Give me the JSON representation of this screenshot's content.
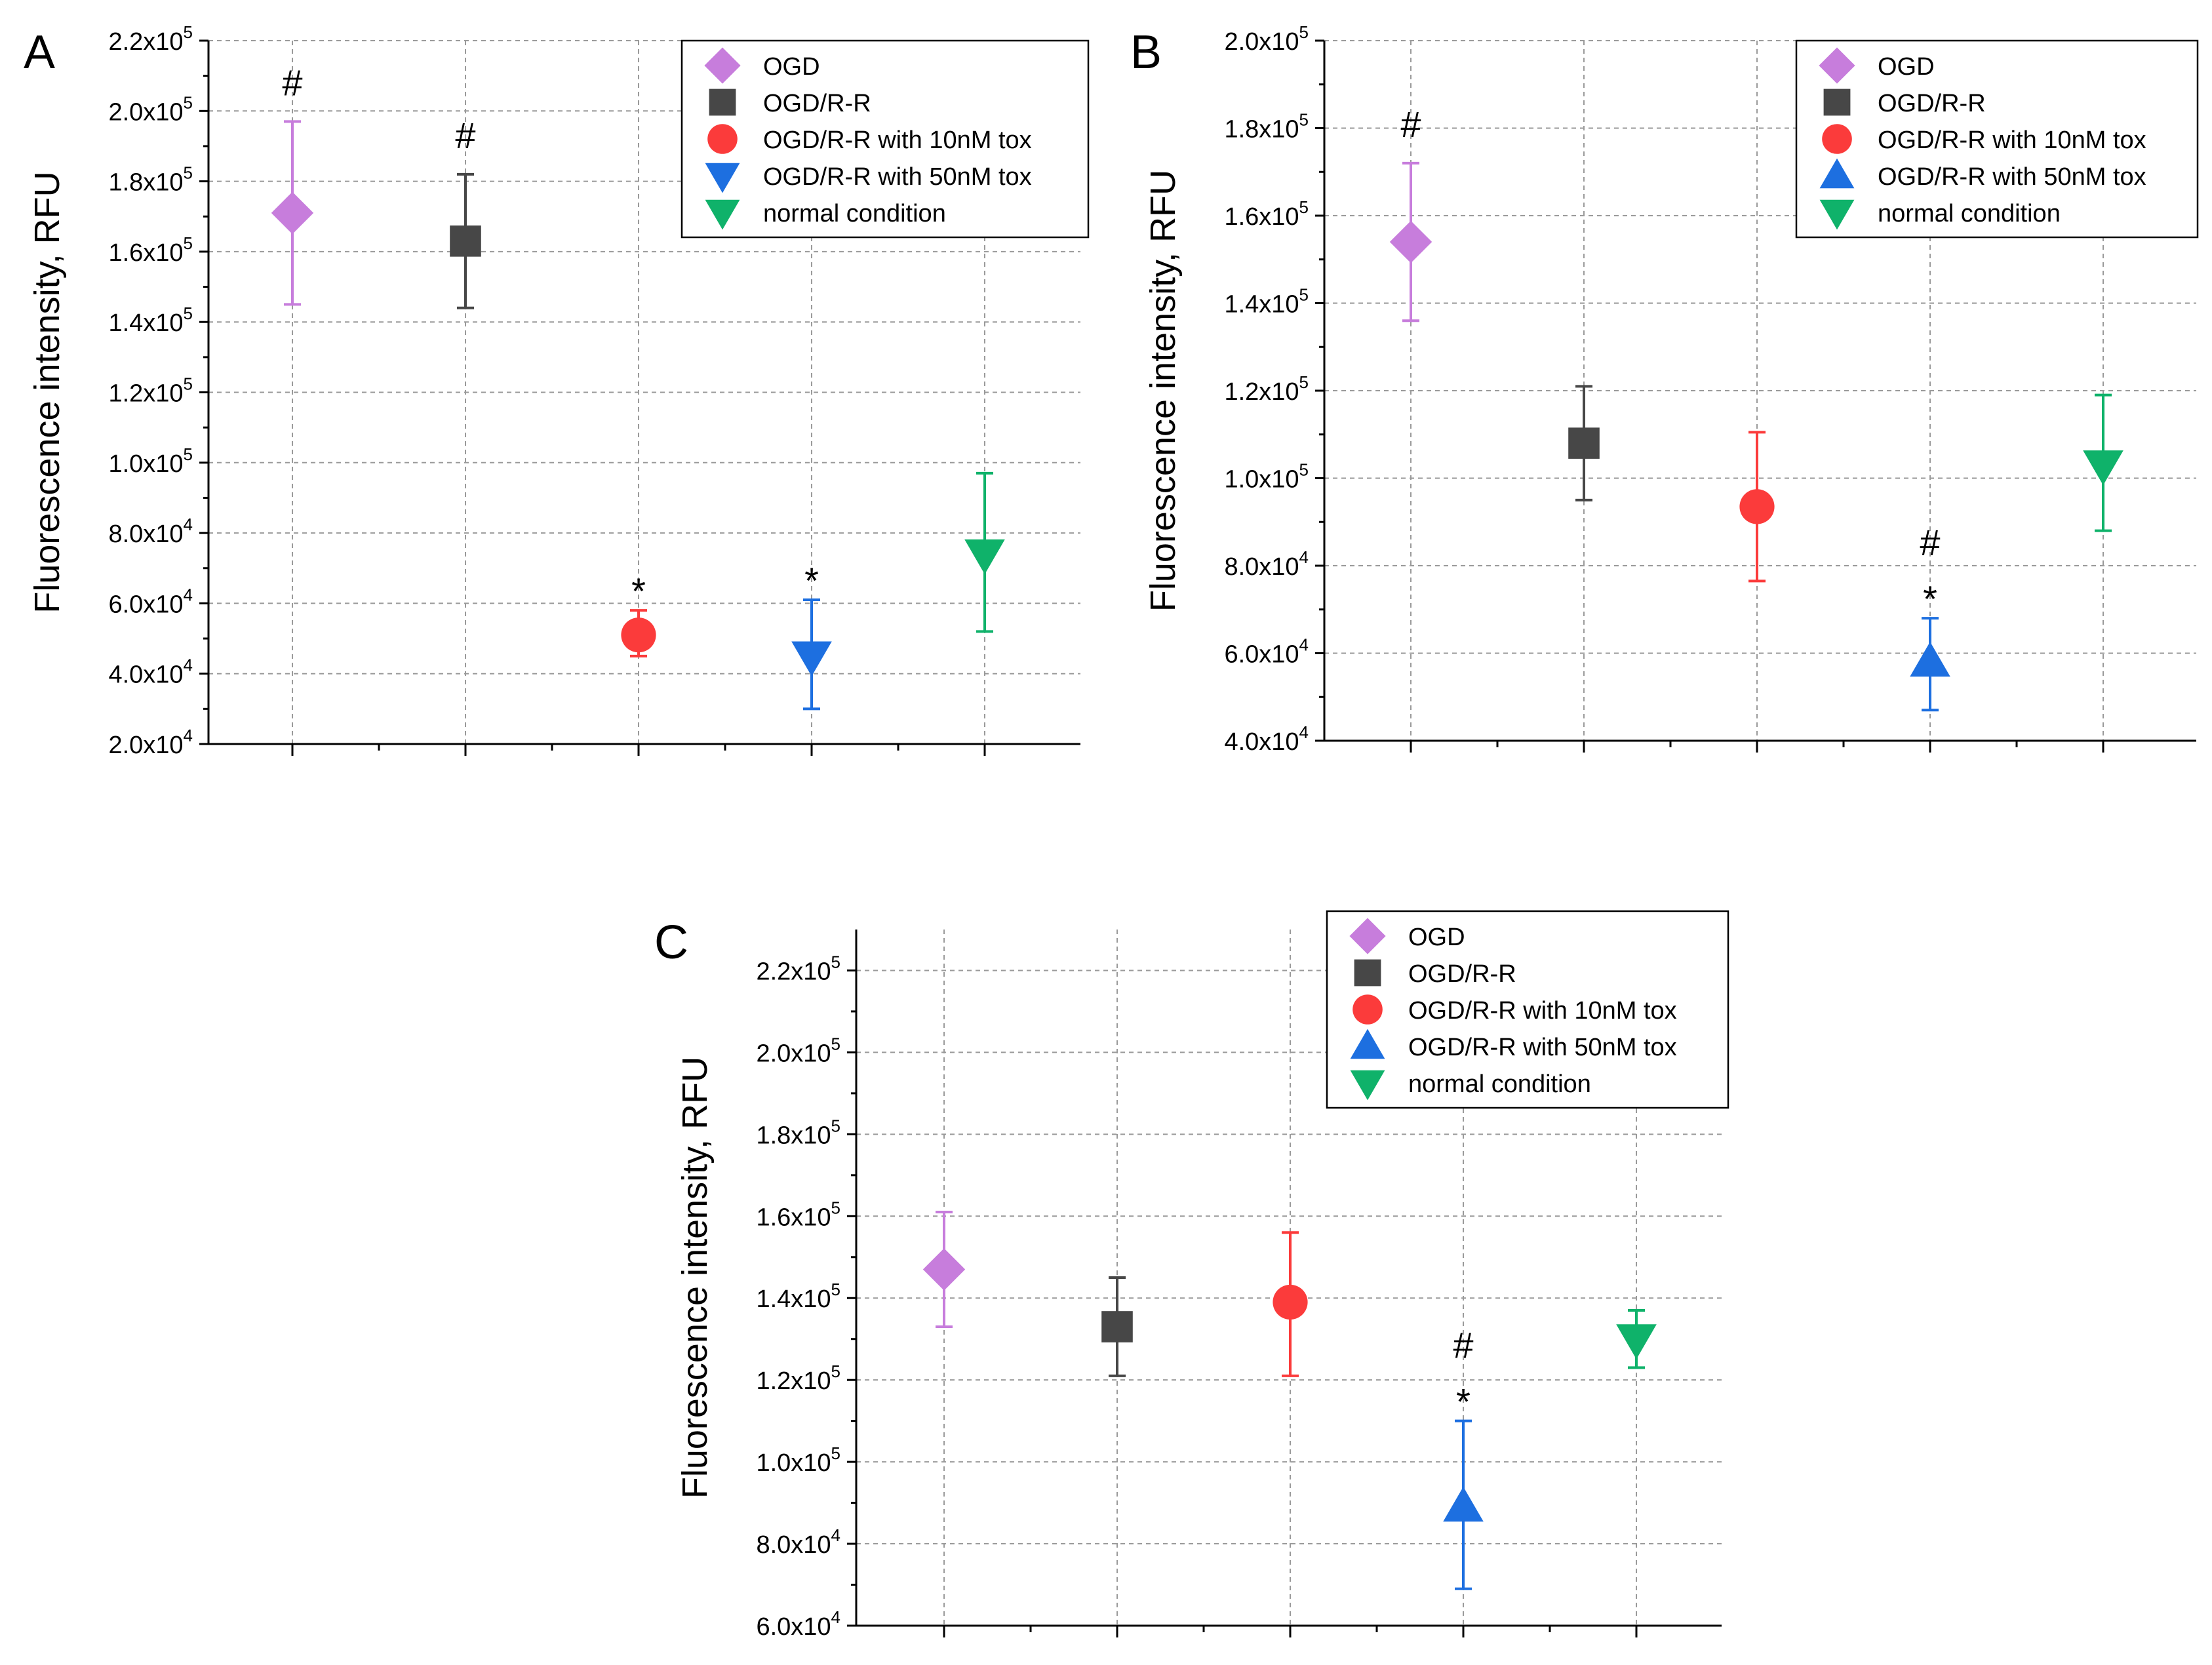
{
  "chart_data": [
    {
      "panel": "A",
      "type": "scatter",
      "ylabel": "Fluorescence intensity, RFU",
      "ylim": [
        20000,
        220000
      ],
      "yticks": [
        20000,
        40000,
        60000,
        80000,
        100000,
        120000,
        140000,
        160000,
        180000,
        200000,
        220000
      ],
      "ytick_labels": [
        [
          "2.0x10",
          "4"
        ],
        [
          "4.0x10",
          "4"
        ],
        [
          "6.0x10",
          "4"
        ],
        [
          "8.0x10",
          "4"
        ],
        [
          "1.0x10",
          "5"
        ],
        [
          "1.2x10",
          "5"
        ],
        [
          "1.4x10",
          "5"
        ],
        [
          "1.6x10",
          "5"
        ],
        [
          "1.8x10",
          "5"
        ],
        [
          "2.0x10",
          "5"
        ],
        [
          "2.2x10",
          "5"
        ]
      ],
      "grid": true,
      "legend_position": "top-right",
      "series": [
        {
          "name": "OGD",
          "marker": "diamond",
          "color": "#c77ddc",
          "value": 171000,
          "err_low": 145000,
          "err_high": 197000,
          "annotations": [
            "#"
          ]
        },
        {
          "name": "OGD/R-R",
          "marker": "square",
          "color": "#474747",
          "value": 163000,
          "err_low": 144000,
          "err_high": 182000,
          "annotations": [
            "#"
          ]
        },
        {
          "name": "OGD/R-R with 10nM tox",
          "marker": "circle",
          "color": "#fb3b3b",
          "value": 51000,
          "err_low": 45000,
          "err_high": 58000,
          "annotations": [
            "*"
          ]
        },
        {
          "name": "OGD/R-R with 50nM tox",
          "marker": "triangle-down",
          "color": "#1d6fe0",
          "value": 45000,
          "err_low": 30000,
          "err_high": 61000,
          "annotations": [
            "*"
          ]
        },
        {
          "name": "normal condition",
          "marker": "triangle-down",
          "color": "#0fb26a",
          "value": 74000,
          "err_low": 52000,
          "err_high": 97000,
          "annotations": []
        }
      ]
    },
    {
      "panel": "B",
      "type": "scatter",
      "ylabel": "Fluorescence intensity, RFU",
      "ylim": [
        40000,
        200000
      ],
      "yticks": [
        40000,
        60000,
        80000,
        100000,
        120000,
        140000,
        160000,
        180000,
        200000
      ],
      "ytick_labels": [
        [
          "4.0x10",
          "4"
        ],
        [
          "6.0x10",
          "4"
        ],
        [
          "8.0x10",
          "4"
        ],
        [
          "1.0x10",
          "5"
        ],
        [
          "1.2x10",
          "5"
        ],
        [
          "1.4x10",
          "5"
        ],
        [
          "1.6x10",
          "5"
        ],
        [
          "1.8x10",
          "5"
        ],
        [
          "2.0x10",
          "5"
        ]
      ],
      "grid": true,
      "legend_position": "top-right",
      "series": [
        {
          "name": "OGD",
          "marker": "diamond",
          "color": "#c77ddc",
          "value": 154000,
          "err_low": 136000,
          "err_high": 172000,
          "annotations": [
            "#"
          ]
        },
        {
          "name": "OGD/R-R",
          "marker": "square",
          "color": "#474747",
          "value": 108000,
          "err_low": 95000,
          "err_high": 121000,
          "annotations": []
        },
        {
          "name": "OGD/R-R with 10nM tox",
          "marker": "circle",
          "color": "#fb3b3b",
          "value": 93500,
          "err_low": 76500,
          "err_high": 110500,
          "annotations": []
        },
        {
          "name": "OGD/R-R with 50nM tox",
          "marker": "triangle-up",
          "color": "#1d6fe0",
          "value": 58000,
          "err_low": 47000,
          "err_high": 68000,
          "annotations": [
            "#",
            "*"
          ]
        },
        {
          "name": "normal condition",
          "marker": "triangle-down",
          "color": "#0fb26a",
          "value": 103000,
          "err_low": 88000,
          "err_high": 119000,
          "annotations": []
        }
      ]
    },
    {
      "panel": "C",
      "type": "scatter",
      "ylabel": "Fluorescence intensity, RFU",
      "ylim": [
        60000,
        230000
      ],
      "yticks": [
        60000,
        80000,
        100000,
        120000,
        140000,
        160000,
        180000,
        200000,
        220000
      ],
      "ytick_labels": [
        [
          "6.0x10",
          "4"
        ],
        [
          "8.0x10",
          "4"
        ],
        [
          "1.0x10",
          "5"
        ],
        [
          "1.2x10",
          "5"
        ],
        [
          "1.4x10",
          "5"
        ],
        [
          "1.6x10",
          "5"
        ],
        [
          "1.8x10",
          "5"
        ],
        [
          "2.0x10",
          "5"
        ],
        [
          "2.2x10",
          "5"
        ]
      ],
      "grid": true,
      "legend_position": "top-right",
      "series": [
        {
          "name": "OGD",
          "marker": "diamond",
          "color": "#c77ddc",
          "value": 147000,
          "err_low": 133000,
          "err_high": 161000,
          "annotations": []
        },
        {
          "name": "OGD/R-R",
          "marker": "square",
          "color": "#474747",
          "value": 133000,
          "err_low": 121000,
          "err_high": 145000,
          "annotations": []
        },
        {
          "name": "OGD/R-R with 10nM tox",
          "marker": "circle",
          "color": "#fb3b3b",
          "value": 139000,
          "err_low": 121000,
          "err_high": 156000,
          "annotations": []
        },
        {
          "name": "OGD/R-R with 50nM tox",
          "marker": "triangle-up",
          "color": "#1d6fe0",
          "value": 89000,
          "err_low": 69000,
          "err_high": 110000,
          "annotations": [
            "#",
            "*"
          ]
        },
        {
          "name": "normal condition",
          "marker": "triangle-down",
          "color": "#0fb26a",
          "value": 130000,
          "err_low": 123000,
          "err_high": 137000,
          "annotations": []
        }
      ]
    }
  ]
}
